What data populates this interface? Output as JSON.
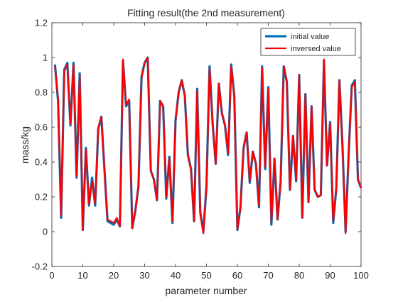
{
  "chart_data": {
    "type": "line",
    "title": "Fitting result(the 2nd measurement)",
    "xlabel": "parameter number",
    "ylabel": "mass/kg",
    "xlim": [
      0,
      100
    ],
    "ylim": [
      -0.2,
      1.2
    ],
    "xticks": [
      0,
      10,
      20,
      30,
      40,
      50,
      60,
      70,
      80,
      90,
      100
    ],
    "yticks": [
      -0.2,
      0,
      0.2,
      0.4,
      0.6,
      0.8,
      1,
      1.2
    ],
    "grid": false,
    "legend_location": "top-right",
    "x": [
      1,
      2,
      3,
      4,
      5,
      6,
      7,
      8,
      9,
      10,
      11,
      12,
      13,
      14,
      15,
      16,
      17,
      18,
      19,
      20,
      21,
      22,
      23,
      24,
      25,
      26,
      27,
      28,
      29,
      30,
      31,
      32,
      33,
      34,
      35,
      36,
      37,
      38,
      39,
      40,
      41,
      42,
      43,
      44,
      45,
      46,
      47,
      48,
      49,
      50,
      51,
      52,
      53,
      54,
      55,
      56,
      57,
      58,
      59,
      60,
      61,
      62,
      63,
      64,
      65,
      66,
      67,
      68,
      69,
      70,
      71,
      72,
      73,
      74,
      75,
      76,
      77,
      78,
      79,
      80,
      81,
      82,
      83,
      84,
      85,
      86,
      87,
      88,
      89,
      90,
      91,
      92,
      93,
      94,
      95,
      96,
      97,
      98,
      99,
      100
    ],
    "series": [
      {
        "name": "initial value",
        "color": "#0072BD",
        "values": [
          0.96,
          0.75,
          0.08,
          0.93,
          0.97,
          0.61,
          0.97,
          0.31,
          0.91,
          0.01,
          0.48,
          0.15,
          0.31,
          0.15,
          0.59,
          0.66,
          0.36,
          0.06,
          0.05,
          0.04,
          0.07,
          0.03,
          0.98,
          0.72,
          0.75,
          0.02,
          0.12,
          0.26,
          0.89,
          0.97,
          1.0,
          0.35,
          0.3,
          0.18,
          0.75,
          0.72,
          0.19,
          0.43,
          0.05,
          0.64,
          0.8,
          0.87,
          0.78,
          0.44,
          0.36,
          0.06,
          0.82,
          0.11,
          0.0,
          0.26,
          0.95,
          0.62,
          0.39,
          0.85,
          0.68,
          0.61,
          0.44,
          0.96,
          0.78,
          0.01,
          0.14,
          0.48,
          0.57,
          0.28,
          0.46,
          0.39,
          0.14,
          0.95,
          0.36,
          0.83,
          0.04,
          0.42,
          0.07,
          0.29,
          0.95,
          0.86,
          0.24,
          0.55,
          0.29,
          0.9,
          0.08,
          0.79,
          0.17,
          0.72,
          0.24,
          0.2,
          0.21,
          0.98,
          0.38,
          0.63,
          0.05,
          0.25,
          0.87,
          0.49,
          0.0,
          0.45,
          0.84,
          0.87,
          0.3,
          0.25
        ]
      },
      {
        "name": "inversed value",
        "color": "#FF0000",
        "values": [
          0.95,
          0.76,
          0.09,
          0.92,
          0.96,
          0.62,
          0.96,
          0.32,
          0.9,
          0.01,
          0.47,
          0.16,
          0.29,
          0.16,
          0.6,
          0.66,
          0.35,
          0.07,
          0.06,
          0.05,
          0.08,
          0.03,
          0.99,
          0.73,
          0.76,
          0.02,
          0.12,
          0.26,
          0.88,
          0.97,
          1.0,
          0.35,
          0.3,
          0.18,
          0.75,
          0.72,
          0.2,
          0.42,
          0.06,
          0.64,
          0.8,
          0.87,
          0.78,
          0.44,
          0.36,
          0.06,
          0.81,
          0.1,
          -0.01,
          0.26,
          0.94,
          0.62,
          0.39,
          0.85,
          0.68,
          0.61,
          0.45,
          0.95,
          0.78,
          0.01,
          0.14,
          0.48,
          0.57,
          0.29,
          0.46,
          0.39,
          0.15,
          0.94,
          0.37,
          0.82,
          0.05,
          0.42,
          0.07,
          0.29,
          0.95,
          0.86,
          0.24,
          0.55,
          0.3,
          0.9,
          0.08,
          0.79,
          0.17,
          0.72,
          0.24,
          0.2,
          0.21,
          0.99,
          0.38,
          0.62,
          0.06,
          0.25,
          0.87,
          0.49,
          -0.01,
          0.46,
          0.83,
          0.86,
          0.3,
          0.25
        ]
      }
    ]
  }
}
